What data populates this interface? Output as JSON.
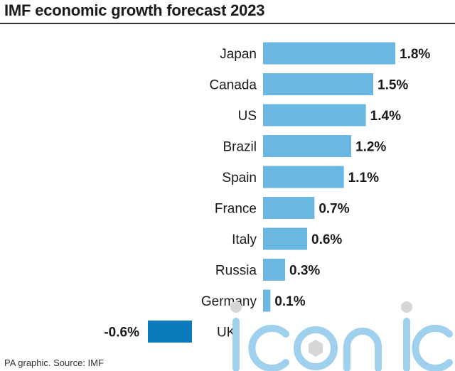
{
  "title": "IMF economic growth forecast 2023",
  "footer": "PA graphic. Source: IMF",
  "colors": {
    "positive_bar": "#6ab8e2",
    "negative_bar": "#0b7bbd",
    "text": "#1a1a1a",
    "watermark": "#d6d6d6",
    "watermark_blue": "#9fd1ef"
  },
  "chart_data": {
    "type": "bar",
    "orientation": "horizontal",
    "categories": [
      "Japan",
      "Canada",
      "US",
      "Brazil",
      "Spain",
      "France",
      "Italy",
      "Russia",
      "Germany",
      "UK"
    ],
    "values": [
      1.8,
      1.5,
      1.4,
      1.2,
      1.1,
      0.7,
      0.6,
      0.3,
      0.1,
      -0.6
    ],
    "value_labels": [
      "1.8%",
      "1.5%",
      "1.4%",
      "1.2%",
      "1.1%",
      "0.7%",
      "0.6%",
      "0.3%",
      "0.1%",
      "-0.6%"
    ],
    "unit": "%",
    "title": "IMF economic growth forecast 2023",
    "xlabel": "",
    "ylabel": "",
    "xlim": [
      -0.6,
      1.8
    ],
    "grid": false,
    "legend": "none"
  }
}
